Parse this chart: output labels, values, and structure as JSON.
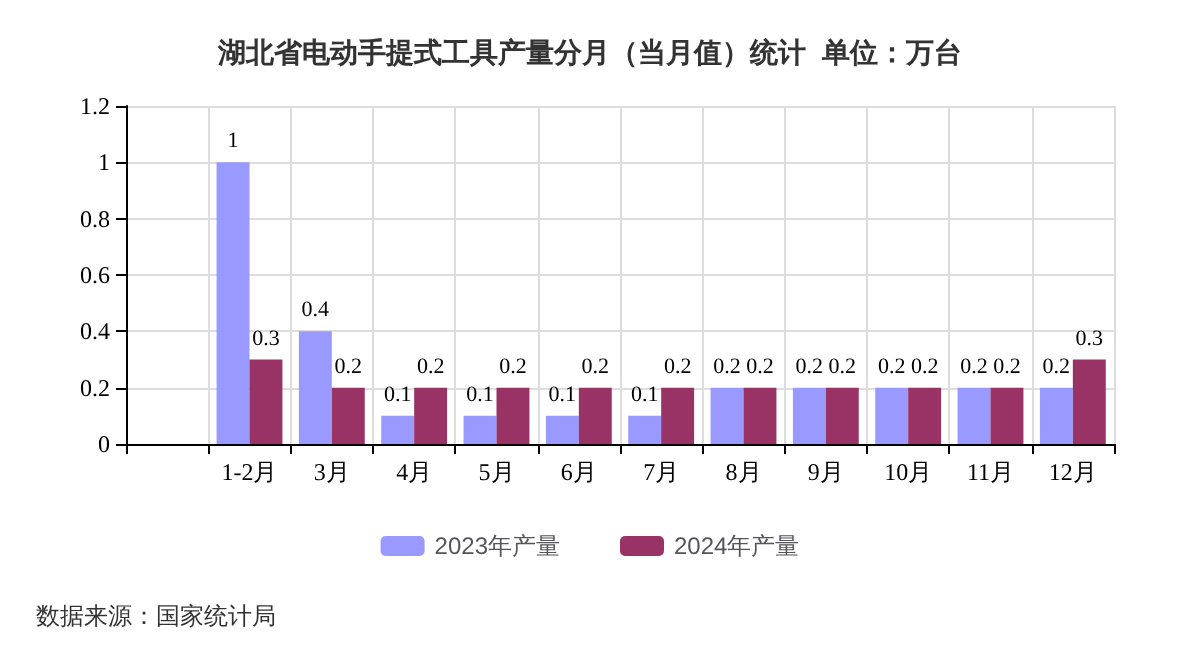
{
  "chart_data": {
    "type": "bar",
    "title": "湖北省电动手提式工具产量分月（当月值）统计  单位：万台",
    "categories": [
      null,
      "1-2月",
      "3月",
      "4月",
      "5月",
      "6月",
      "7月",
      "8月",
      "9月",
      "10月",
      "11月",
      "12月"
    ],
    "series": [
      {
        "name": "2023年产量",
        "color": "#9999ff",
        "values": [
          null,
          1,
          0.4,
          0.1,
          0.1,
          0.1,
          0.1,
          0.2,
          0.2,
          0.2,
          0.2,
          0.2
        ]
      },
      {
        "name": "2024年产量",
        "color": "#993366",
        "values": [
          null,
          0.3,
          0.2,
          0.2,
          0.2,
          0.2,
          0.2,
          0.2,
          0.2,
          0.2,
          0.2,
          0.3
        ]
      }
    ],
    "ylim": [
      0,
      1.2
    ],
    "yticks": [
      0,
      0.2,
      0.4,
      0.6,
      0.8,
      1,
      1.2
    ],
    "grid": true,
    "legend": "bottom",
    "data_labels": true,
    "annotations": [
      "数据来源：国家统计局"
    ]
  }
}
